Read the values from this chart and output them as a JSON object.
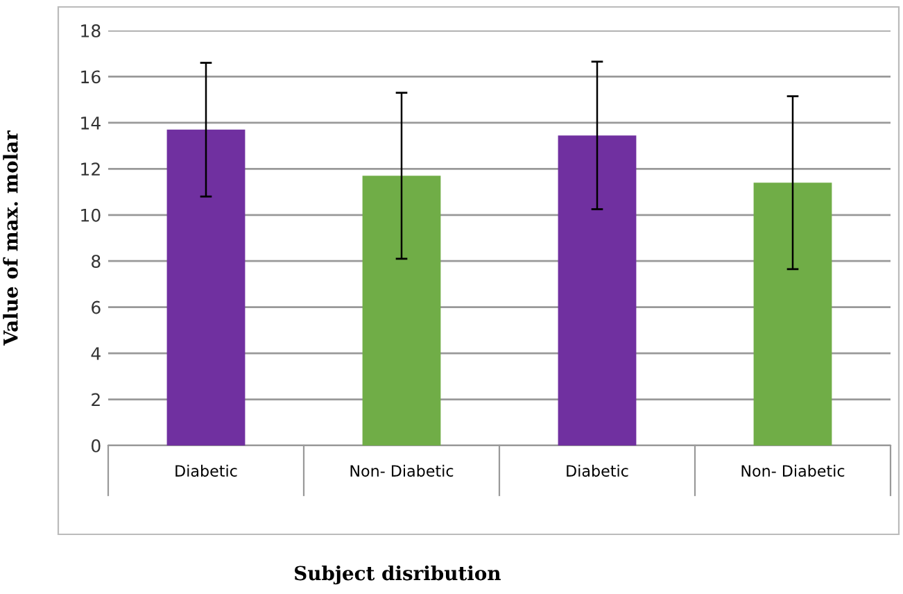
{
  "chart_data": {
    "type": "bar",
    "xlabel": "Subject disribution",
    "ylabel": "Value of max. molar",
    "categories": [
      "Diabetic",
      "Non- Diabetic",
      "Diabetic",
      "Non- Diabetic"
    ],
    "values": [
      13.7,
      11.7,
      13.45,
      11.4
    ],
    "colors": [
      "#7030a0",
      "#70ad47",
      "#7030a0",
      "#70ad47"
    ],
    "errors": [
      2.9,
      3.6,
      3.2,
      3.75
    ],
    "ylim": [
      0,
      18
    ],
    "yticks": [
      0,
      2,
      4,
      6,
      8,
      10,
      12,
      14,
      16,
      18
    ],
    "grid": "y"
  }
}
